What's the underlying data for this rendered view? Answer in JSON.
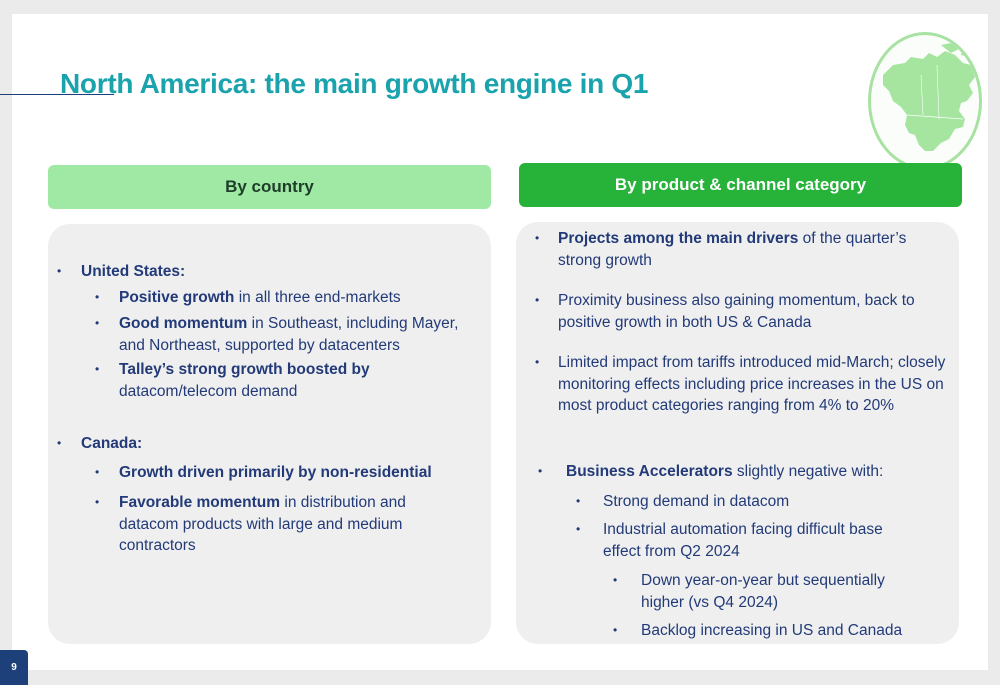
{
  "title": "North America: the main growth engine in Q1",
  "page_number": "9",
  "map_icon": "north-america-map-icon",
  "colors": {
    "title": "#1aa3ad",
    "text": "#223a78",
    "header_left_bg": "#a0e9a4",
    "header_right_bg": "#27b23a"
  },
  "left": {
    "header": "By country",
    "us_label": "United States:",
    "us_items": [
      {
        "bold": "Positive growth",
        "rest": " in all three end-markets"
      },
      {
        "bold": "Good momentum",
        "rest": " in Southeast, including Mayer, and Northeast, supported by datacenters"
      },
      {
        "bold": "Talley’s strong growth boosted by",
        "rest": " datacom/telecom demand"
      }
    ],
    "canada_label": "Canada:",
    "canada_items": [
      {
        "bold": "Growth driven primarily by non-residential",
        "rest": ""
      },
      {
        "bold": "Favorable momentum",
        "rest": " in distribution and datacom products with large and medium contractors"
      }
    ]
  },
  "right": {
    "header": "By product & channel category",
    "items": [
      {
        "bold": "Projects among the main drivers",
        "rest": " of the quarter’s strong growth"
      },
      {
        "bold": "",
        "rest": "Proximity business also gaining momentum, back to positive growth in both US & Canada"
      },
      {
        "bold": "",
        "rest": "Limited impact from tariffs introduced mid-March; closely monitoring effects including price increases in the US on most product categories ranging from 4% to 20%"
      },
      {
        "bold": "Business Accelerators",
        "rest": " slightly negative with:"
      }
    ],
    "sub_items": [
      "Strong demand in datacom",
      "Industrial automation facing difficult base effect from Q2 2024"
    ],
    "sub_sub_items": [
      "Down year-on-year but sequentially higher (vs Q4 2024)",
      "Backlog increasing in US and Canada"
    ]
  }
}
